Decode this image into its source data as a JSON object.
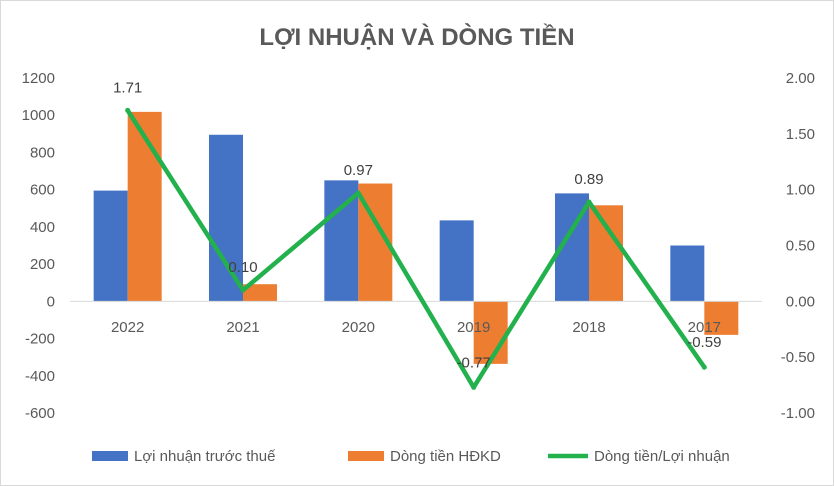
{
  "chart_data": {
    "type": "bar",
    "title": "LỢI NHUẬN VÀ DÒNG TIỀN",
    "categories": [
      "2022",
      "2021",
      "2020",
      "2019",
      "2018",
      "2017"
    ],
    "series": [
      {
        "name": "Lợi nhuận trước thuế",
        "type": "bar",
        "axis": "left",
        "color": "#4472C4",
        "values": [
          595,
          895,
          650,
          435,
          580,
          300
        ]
      },
      {
        "name": "Dòng tiền HĐKD",
        "type": "bar",
        "axis": "left",
        "color": "#ED7D31",
        "values": [
          1018,
          92,
          633,
          -336,
          516,
          -180
        ]
      },
      {
        "name": "Dòng tiền/Lợi nhuận",
        "type": "line",
        "axis": "right",
        "color": "#22B14C",
        "values": [
          1.71,
          0.1,
          0.97,
          -0.77,
          0.89,
          -0.59
        ],
        "labels": [
          "1.71",
          "0.10",
          "0.97",
          "-0.77",
          "0.89",
          "-0.59"
        ]
      }
    ],
    "y_left": {
      "min": -600,
      "max": 1200,
      "step": 200,
      "tick_labels": [
        "1200",
        "1000",
        "800",
        "600",
        "400",
        "200",
        "0",
        "-200",
        "-400",
        "-600"
      ]
    },
    "y_right": {
      "min": -1.0,
      "max": 2.0,
      "step": 0.5,
      "tick_labels": [
        "2.00",
        "1.50",
        "1.00",
        "0.50",
        "0.00",
        "-0.50",
        "-1.00"
      ]
    },
    "grid": false,
    "legend": "bottom"
  }
}
